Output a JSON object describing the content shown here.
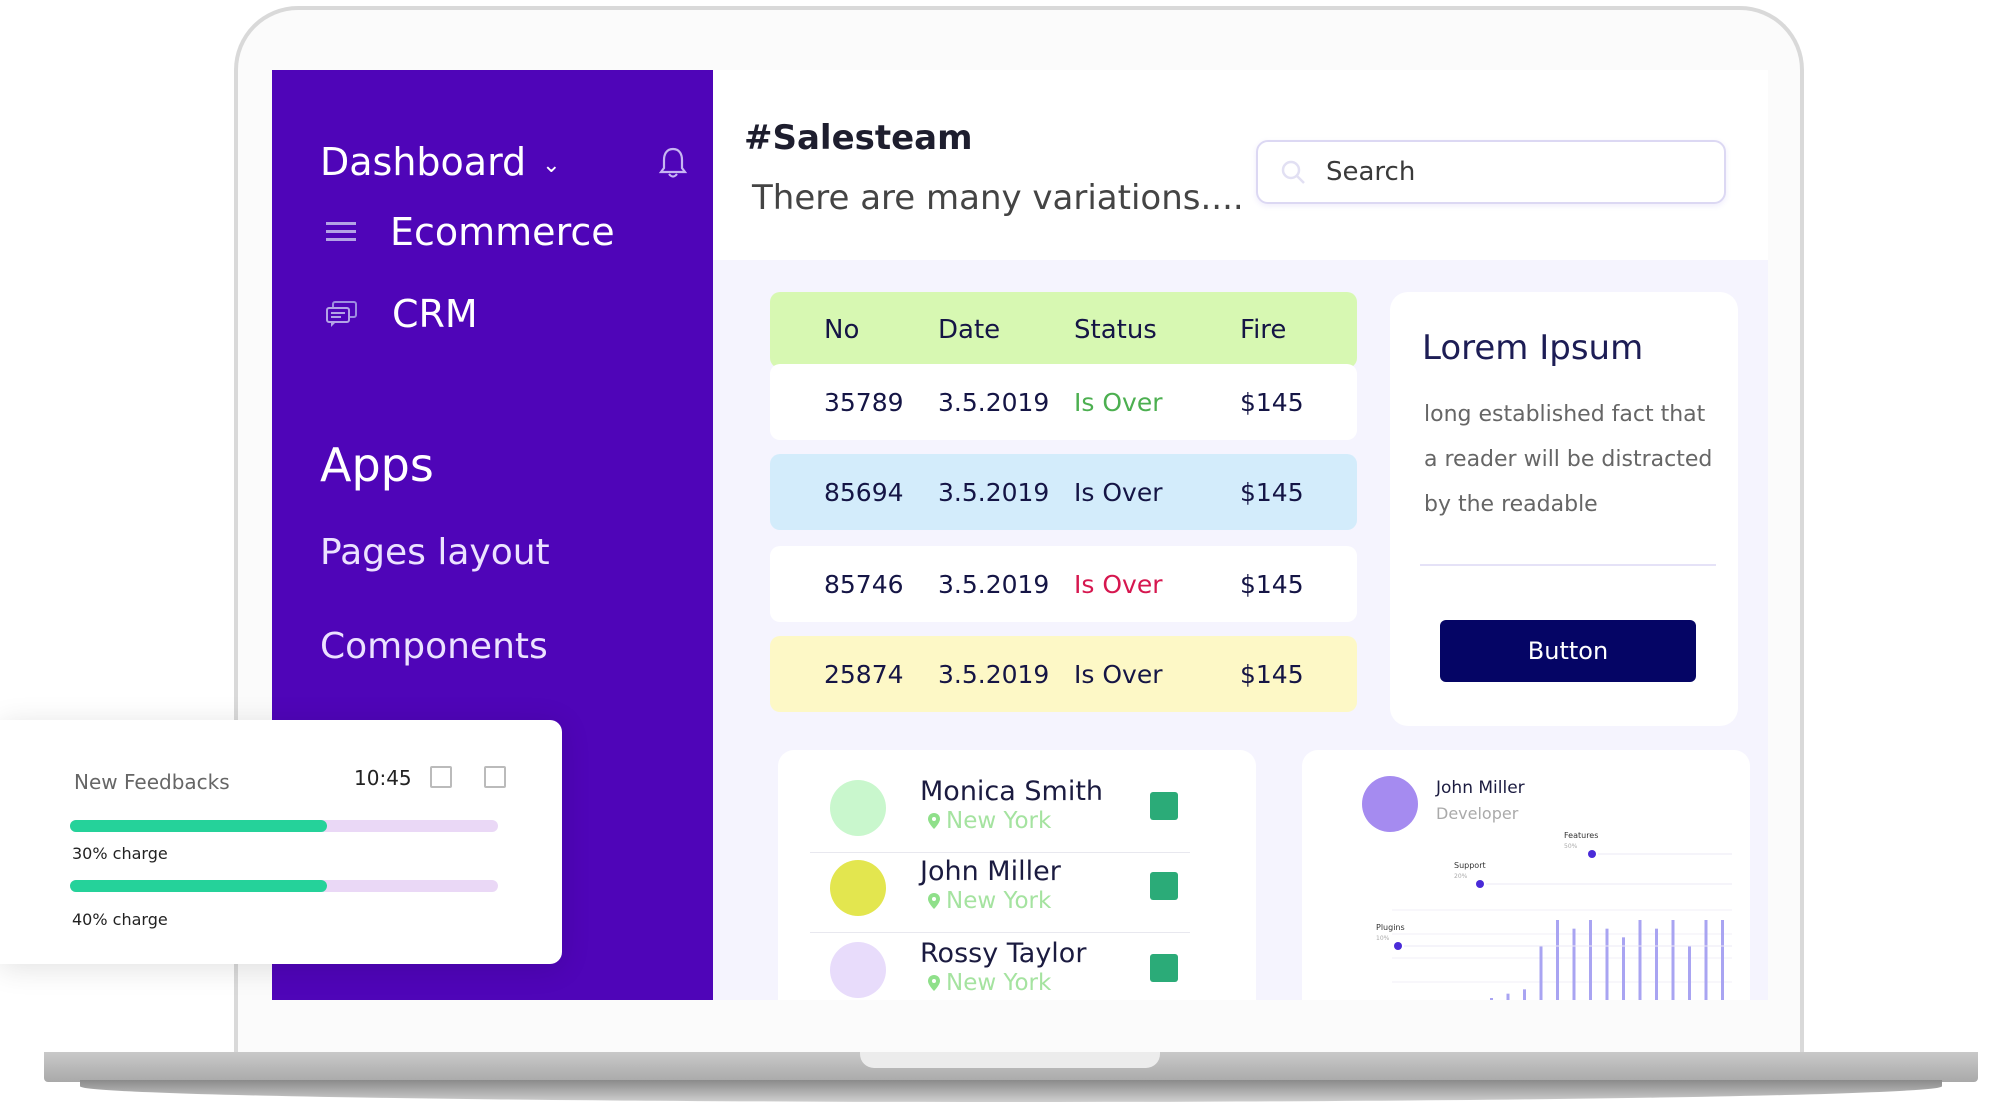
{
  "sidebar": {
    "dashboard": "Dashboard",
    "items": [
      {
        "label": "Ecommerce",
        "icon": "menu-icon"
      },
      {
        "label": "CRM",
        "icon": "chat-icon"
      }
    ],
    "apps_heading": "Apps",
    "sub_items": [
      "Pages layout",
      "Components"
    ]
  },
  "header": {
    "title": "#Salesteam",
    "subtitle": "There are many variations....",
    "search_placeholder": "Search"
  },
  "table": {
    "columns": [
      "No",
      "Date",
      "Status",
      "Fire"
    ],
    "rows": [
      {
        "no": "35789",
        "date": "3.5.2019",
        "status": "Is Over",
        "fire": "$145",
        "bg": "#ffffff",
        "status_color": "#4caf50"
      },
      {
        "no": "85694",
        "date": "3.5.2019",
        "status": "Is Over",
        "fire": "$145",
        "bg": "#d3ecfb",
        "status_color": "#151545"
      },
      {
        "no": "85746",
        "date": "3.5.2019",
        "status": "Is Over",
        "fire": "$145",
        "bg": "#ffffff",
        "status_color": "#d6174f"
      },
      {
        "no": "25874",
        "date": "3.5.2019",
        "status": "Is Over",
        "fire": "$145",
        "bg": "#fdf8c6",
        "status_color": "#151545"
      }
    ],
    "header_bg": "#d7f8b2"
  },
  "card": {
    "title": "Lorem Ipsum",
    "text": "long established fact that a reader will be distracted by the readable",
    "button": "Button"
  },
  "contacts": [
    {
      "name": "Monica Smith",
      "location": "New York",
      "avatar_color": "#c9f7cd",
      "checked": true
    },
    {
      "name": "John Miller",
      "location": "New York",
      "avatar_color": "#e3e64f",
      "checked": true
    },
    {
      "name": "Rossy Taylor",
      "location": "New York",
      "avatar_color": "#e8dcfb",
      "checked": true
    }
  ],
  "profile_chart": {
    "name": "John Miller",
    "role": "Developer",
    "labels": [
      {
        "label": "Features",
        "value": "50%"
      },
      {
        "label": "Support",
        "value": "20%"
      },
      {
        "label": "Plugins",
        "value": "10%"
      }
    ]
  },
  "chart_data": {
    "type": "bar",
    "title": "",
    "xlabel": "",
    "ylabel": "",
    "values": [
      3,
      4,
      3.5,
      3,
      4,
      3,
      4,
      5,
      6,
      6.5,
      7,
      12,
      15,
      14,
      15,
      14,
      13,
      15,
      14,
      15,
      12,
      15,
      15
    ],
    "series_color": "#a9a4f2",
    "annotations": [
      {
        "label": "Plugins",
        "value": "10%"
      },
      {
        "label": "Support",
        "value": "20%"
      },
      {
        "label": "Features",
        "value": "50%"
      }
    ]
  },
  "feedback": {
    "title": "New Feedbacks",
    "time": "10:45",
    "bars": [
      {
        "label": "30% charge",
        "fill": 0.6
      },
      {
        "label": "40% charge",
        "fill": 0.6
      }
    ]
  },
  "colors": {
    "sidebar": "#4f05b8",
    "button": "#050565",
    "progress": "#25d29a"
  }
}
